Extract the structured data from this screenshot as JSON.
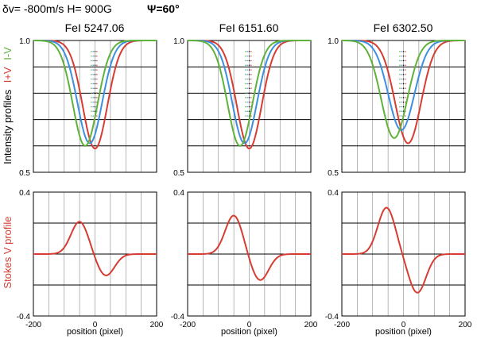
{
  "header": {
    "params_left": "δv= -800m/s  H= 900G",
    "psi": "Ψ=60°"
  },
  "axes_labels": {
    "intensity_main": "Intensity profiles",
    "intensity_iplusv": "I+V",
    "intensity_iminusv": "I-V",
    "stokes": "Stokes V profile",
    "xlabel": "position (pixel)"
  },
  "ticks": {
    "x": [
      "-200",
      "0",
      "200"
    ],
    "intensity_y": [
      "1.0",
      "0.5"
    ],
    "stokes_y": [
      "0.4",
      "-0.4"
    ]
  },
  "colors": {
    "i_plus_v": "#d63c32",
    "i_minus_v": "#5fb23a",
    "intensity": "#3d8fe0",
    "stokes": "#d63c32",
    "grid": "#000000"
  },
  "chart_data": [
    {
      "type": "line",
      "title": "FeI 5247.06",
      "panel": "intensity",
      "xlabel": "",
      "ylabel": "Intensity profiles",
      "xlim": [
        -200,
        200
      ],
      "ylim": [
        0.5,
        1.0
      ],
      "series": [
        {
          "name": "I+V",
          "color": "#d63c32",
          "center": 0,
          "depth": 0.41,
          "width": 40
        },
        {
          "name": "I",
          "color": "#3d8fe0",
          "center": -17,
          "depth": 0.39,
          "width": 40
        },
        {
          "name": "I-V",
          "color": "#5fb23a",
          "center": -32,
          "depth": 0.4,
          "width": 40
        }
      ]
    },
    {
      "type": "line",
      "title": "FeI 6151.60",
      "panel": "intensity",
      "xlabel": "",
      "ylabel": "Intensity profiles",
      "xlim": [
        -200,
        200
      ],
      "ylim": [
        0.5,
        1.0
      ],
      "series": [
        {
          "name": "I+V",
          "color": "#d63c32",
          "center": 0,
          "depth": 0.41,
          "width": 40
        },
        {
          "name": "I",
          "color": "#3d8fe0",
          "center": -15,
          "depth": 0.39,
          "width": 40
        },
        {
          "name": "I-V",
          "color": "#5fb23a",
          "center": -30,
          "depth": 0.4,
          "width": 40
        }
      ]
    },
    {
      "type": "line",
      "title": "FeI 6302.50",
      "panel": "intensity",
      "xlabel": "",
      "ylabel": "Intensity profiles",
      "xlim": [
        -200,
        200
      ],
      "ylim": [
        0.5,
        1.0
      ],
      "series": [
        {
          "name": "I+V",
          "color": "#d63c32",
          "center": 15,
          "depth": 0.39,
          "width": 42
        },
        {
          "name": "I",
          "color": "#3d8fe0",
          "center": -7,
          "depth": 0.34,
          "width": 42
        },
        {
          "name": "I-V",
          "color": "#5fb23a",
          "center": -30,
          "depth": 0.37,
          "width": 42
        }
      ]
    },
    {
      "type": "line",
      "title": "",
      "panel": "stokes",
      "xlabel": "position (pixel)",
      "ylabel": "Stokes V profile",
      "xlim": [
        -200,
        200
      ],
      "ylim": [
        -0.4,
        0.4
      ],
      "series": [
        {
          "name": "V",
          "color": "#d63c32",
          "pos_center": -50,
          "pos_amp": 0.21,
          "pos_width": 28,
          "neg_center": 35,
          "neg_amp": -0.14,
          "neg_width": 28
        }
      ]
    },
    {
      "type": "line",
      "title": "",
      "panel": "stokes",
      "xlabel": "position (pixel)",
      "ylabel": "Stokes V profile",
      "xlim": [
        -200,
        200
      ],
      "ylim": [
        -0.4,
        0.4
      ],
      "series": [
        {
          "name": "V",
          "color": "#d63c32",
          "pos_center": -50,
          "pos_amp": 0.25,
          "pos_width": 28,
          "neg_center": 35,
          "neg_amp": -0.17,
          "neg_width": 28
        }
      ]
    },
    {
      "type": "line",
      "title": "",
      "panel": "stokes",
      "xlabel": "position (pixel)",
      "ylabel": "Stokes V profile",
      "xlim": [
        -200,
        200
      ],
      "ylim": [
        -0.4,
        0.4
      ],
      "series": [
        {
          "name": "V",
          "color": "#d63c32",
          "pos_center": -55,
          "pos_amp": 0.3,
          "pos_width": 28,
          "neg_center": 45,
          "neg_amp": -0.25,
          "neg_width": 28
        }
      ]
    }
  ]
}
